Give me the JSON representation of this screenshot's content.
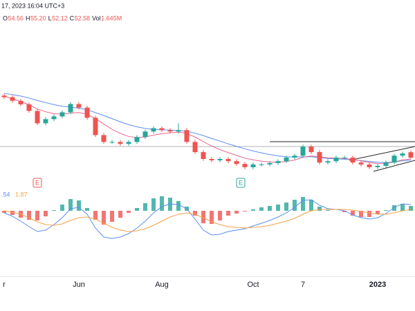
{
  "chart_data": {
    "type": "candlestick",
    "header": "17, 2023 16:04 UTC+3",
    "ohlc_legend": [
      {
        "label": "O",
        "value": "54.56"
      },
      {
        "label": "H",
        "value": "55.20"
      },
      {
        "label": "L",
        "value": "52.12"
      },
      {
        "label": "C",
        "value": "52.58"
      },
      {
        "label": "Vol",
        "value": "1.645M"
      }
    ],
    "categories": [
      "r",
      null,
      null,
      null,
      null,
      null,
      null,
      null,
      null,
      "Jun",
      null,
      null,
      null,
      null,
      null,
      null,
      null,
      null,
      null,
      "Aug",
      null,
      null,
      null,
      null,
      null,
      null,
      null,
      null,
      null,
      null,
      "Oct",
      null,
      null,
      null,
      null,
      null,
      "7",
      null,
      null,
      null,
      null,
      null,
      null,
      null,
      null,
      "2023",
      null,
      null,
      null,
      null
    ],
    "open": [
      75.2,
      74.6,
      73.3,
      72,
      69.6,
      65.1,
      66.6,
      67.6,
      69.1,
      72.1,
      70.8,
      67.1,
      60.8,
      58.3,
      58.3,
      57.6,
      58.3,
      60.1,
      62.1,
      63.3,
      62.6,
      62.1,
      62.6,
      58.3,
      54.6,
      52.1,
      51.6,
      52.1,
      51.3,
      50.3,
      49.1,
      50.1,
      50.1,
      50.6,
      51.3,
      52.6,
      53.3,
      56.6,
      54.6,
      50.8,
      51.3,
      52.6,
      52.6,
      50.8,
      50.1,
      49.1,
      49.6,
      50.8,
      53.3,
      54.56
    ],
    "high": [
      75.9,
      75.3,
      74,
      72.7,
      70.3,
      67.3,
      68.3,
      69.8,
      72.8,
      72.8,
      71.5,
      67.8,
      61.5,
      59,
      59,
      59,
      60.8,
      62.8,
      64,
      64,
      63.3,
      65.1,
      63.3,
      59,
      55.3,
      52.8,
      52.8,
      52.8,
      52,
      51,
      50.8,
      50.8,
      51.3,
      52,
      53.3,
      54,
      57.3,
      57.3,
      55.3,
      52,
      53.3,
      53.3,
      53.3,
      51.5,
      50.8,
      50.3,
      51.5,
      54,
      54.8,
      55.2
    ],
    "low": [
      73.9,
      72.6,
      71.3,
      68.9,
      64.4,
      64.4,
      65.9,
      66.9,
      68.4,
      70.1,
      66.4,
      60.1,
      57.6,
      57.6,
      56.9,
      56.9,
      57.6,
      59.4,
      61.4,
      61.9,
      61.4,
      61.4,
      57.6,
      53.9,
      51.4,
      50.9,
      50.9,
      50.6,
      49.6,
      48.4,
      48.4,
      49.4,
      49.4,
      49.9,
      50.6,
      51.9,
      52.6,
      53.9,
      50.1,
      50.1,
      50.6,
      51.9,
      50.1,
      49.4,
      48.4,
      48.4,
      48.9,
      50.1,
      52.6,
      52.12
    ],
    "close": [
      74.6,
      73.3,
      72,
      69.6,
      65.1,
      66.6,
      67.6,
      69.1,
      72.1,
      70.8,
      67.1,
      60.8,
      58.3,
      58.3,
      57.6,
      58.3,
      60.1,
      62.1,
      63.3,
      62.6,
      62.1,
      62.6,
      58.3,
      54.6,
      52.1,
      51.6,
      52.1,
      51.3,
      50.3,
      49.1,
      50.1,
      50.1,
      50.6,
      51.3,
      52.6,
      53.3,
      56.6,
      54.6,
      50.8,
      51.3,
      52.6,
      52.6,
      50.8,
      50.1,
      49.1,
      49.6,
      50.8,
      53.3,
      54.1,
      52.58
    ],
    "up_color": "#26a69a",
    "down_color": "#ef5350",
    "ylim": [
      37,
      110
    ],
    "moving_averages": [
      {
        "color": "#5b8def",
        "values": [
          76,
          75.5,
          75,
          74.3,
          73.4,
          72.6,
          71.9,
          71.3,
          71,
          70.6,
          70,
          69,
          67.9,
          66.8,
          65.6,
          64.6,
          63.8,
          63.2,
          62.9,
          62.7,
          62.6,
          62.5,
          62.2,
          61.5,
          60.6,
          59.6,
          58.6,
          57.6,
          56.7,
          55.8,
          55,
          54.3,
          53.7,
          53.2,
          52.9,
          52.8,
          52.9,
          52.9,
          52.6,
          52.3,
          52.1,
          52,
          51.8,
          51.5,
          51.2,
          50.9,
          50.8,
          51,
          51.4,
          51.7
        ]
      },
      {
        "color": "#e8648a",
        "values": [
          75,
          74,
          73,
          71.8,
          70.3,
          69.3,
          68.6,
          68.4,
          68.8,
          69,
          68.4,
          66.8,
          64.8,
          62.9,
          61.4,
          60.3,
          59.9,
          60.1,
          60.8,
          61.3,
          61.6,
          61.9,
          61.4,
          60.1,
          58.4,
          56.8,
          55.5,
          54.4,
          53.4,
          52.4,
          51.8,
          51.3,
          51,
          50.9,
          51.2,
          51.7,
          52.7,
          53.2,
          52.9,
          52.5,
          52.4,
          52.3,
          51.9,
          51.4,
          50.8,
          50.4,
          50.4,
          51,
          51.8,
          52.1
        ]
      }
    ],
    "events": [
      "E",
      "E"
    ],
    "macd_legend": [
      ".54",
      "1.87"
    ],
    "y2lim": [
      -9,
      3.5
    ],
    "macd": {
      "color": "#5b8def",
      "values": [
        -0.3,
        -0.8,
        -1.5,
        -2.3,
        -3,
        -2.8,
        -2,
        -1,
        0.3,
        0.5,
        -0.5,
        -2.5,
        -3.8,
        -4,
        -3.8,
        -3.3,
        -2.5,
        -1.5,
        -0.3,
        0.6,
        1,
        0.9,
        0.3,
        -1.2,
        -2.8,
        -3.5,
        -3.4,
        -3,
        -2.8,
        -2.6,
        -2.2,
        -1.8,
        -1.4,
        -0.9,
        -0.3,
        0.5,
        1.5,
        1.6,
        0.8,
        0.3,
        0.2,
        0,
        -0.6,
        -1,
        -1.2,
        -1,
        -0.4,
        0.5,
        1,
        0.9
      ]
    },
    "signal": {
      "color": "#f5a04a",
      "values": [
        0,
        -0.2,
        -0.5,
        -1,
        -1.6,
        -2,
        -2.1,
        -1.9,
        -1.4,
        -1,
        -0.9,
        -1.2,
        -1.8,
        -2.4,
        -2.8,
        -3,
        -2.9,
        -2.6,
        -2.1,
        -1.5,
        -0.9,
        -0.5,
        -0.3,
        -0.5,
        -1,
        -1.6,
        -2,
        -2.3,
        -2.4,
        -2.5,
        -2.4,
        -2.3,
        -2.1,
        -1.8,
        -1.5,
        -1.1,
        -0.5,
        0,
        0.2,
        0.2,
        0.2,
        0.2,
        0.1,
        -0.1,
        -0.3,
        -0.5,
        -0.5,
        -0.3,
        0,
        0.2
      ]
    },
    "histogram": [
      -0.3,
      -0.6,
      -1,
      -1.3,
      -1.4,
      -0.8,
      0.1,
      0.9,
      1.7,
      1.5,
      0.4,
      -1.3,
      -2,
      -1.6,
      -1,
      -0.3,
      0.4,
      1.1,
      1.8,
      2.1,
      1.9,
      1.4,
      0.6,
      -0.7,
      -1.8,
      -1.9,
      -1.4,
      -0.7,
      -0.4,
      -0.1,
      0.2,
      0.5,
      0.7,
      0.9,
      1.2,
      1.6,
      2,
      1.6,
      0.6,
      0.1,
      0,
      -0.2,
      -0.7,
      -0.9,
      -0.9,
      -0.5,
      0.1,
      0.8,
      1,
      0.7
    ]
  }
}
